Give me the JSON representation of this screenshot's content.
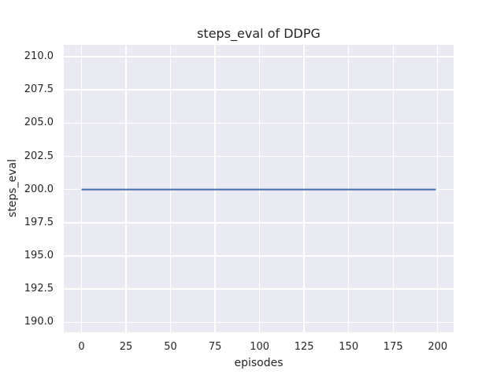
{
  "colors": {
    "figure_bg": "#ffffff",
    "axes_bg": "#eaeaf2",
    "grid": "#ffffff",
    "line": "#4c72b0",
    "text": "#262626"
  },
  "chart_data": {
    "type": "line",
    "title": "steps_eval of DDPG",
    "xlabel": "episodes",
    "ylabel": "steps_eval",
    "grid": true,
    "legend": null,
    "xlim": [
      -9.95,
      208.95
    ],
    "ylim": [
      189.25,
      210.89
    ],
    "x_ticks": [
      0,
      25,
      50,
      75,
      100,
      125,
      150,
      175,
      200
    ],
    "x_tick_labels": [
      "0",
      "25",
      "50",
      "75",
      "100",
      "125",
      "150",
      "175",
      "200"
    ],
    "y_ticks": [
      190,
      192.5,
      195,
      197.5,
      200,
      202.5,
      205,
      207.5,
      210
    ],
    "y_tick_labels": [
      "190.0",
      "192.5",
      "195.0",
      "197.5",
      "200.0",
      "202.5",
      "205.0",
      "207.5",
      "210.0"
    ],
    "series": [
      {
        "name": "steps_eval",
        "color": "#4c72b0",
        "x": [
          0,
          199
        ],
        "y": [
          200,
          200
        ],
        "note": "constant value 200 across all episodes 0-199"
      }
    ]
  }
}
